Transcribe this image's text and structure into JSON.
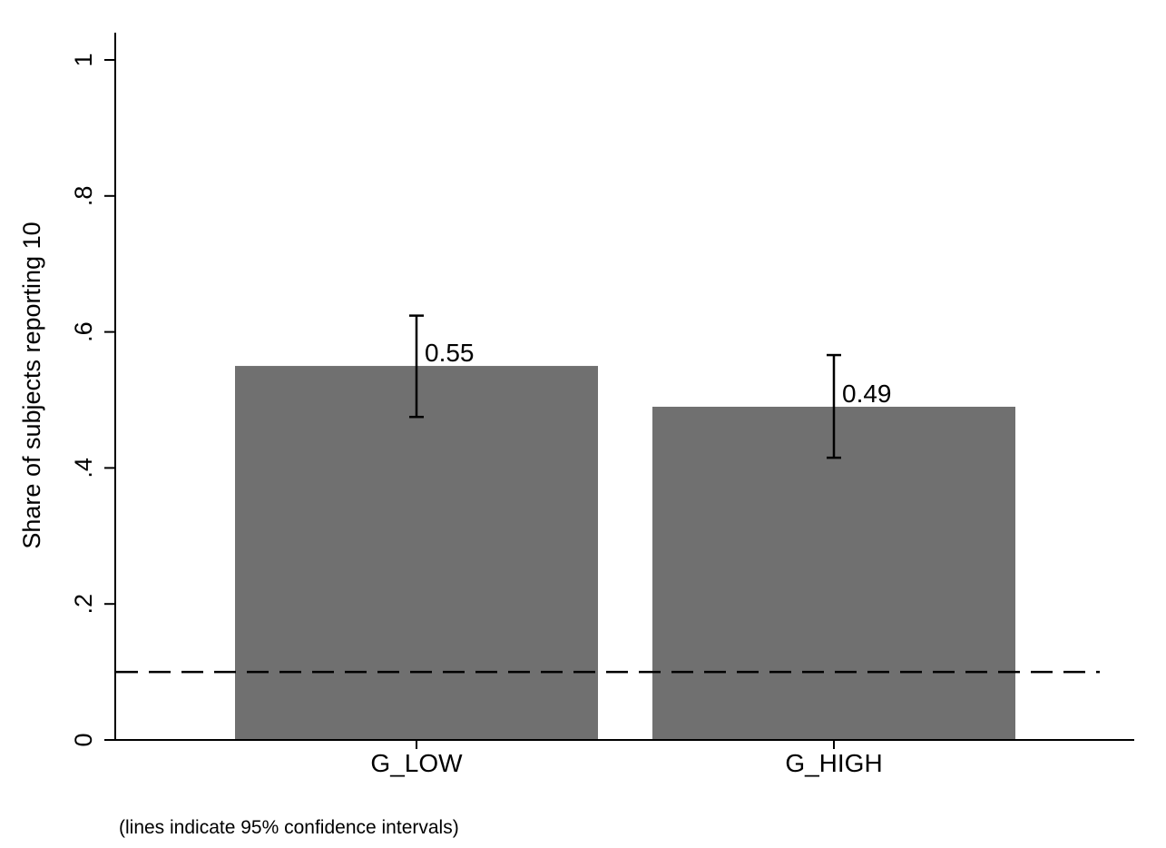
{
  "chart_data": {
    "type": "bar",
    "categories": [
      "G_LOW",
      "G_HIGH"
    ],
    "values": [
      0.55,
      0.49
    ],
    "value_labels": [
      "0.55",
      "0.49"
    ],
    "ci_lower": [
      0.475,
      0.415
    ],
    "ci_upper": [
      0.624,
      0.566
    ],
    "ylabel": "Share of subjects reporting 10",
    "ylim": [
      0,
      1
    ],
    "yticks": [
      0,
      0.2,
      0.4,
      0.6,
      0.8,
      1
    ],
    "ytick_labels": [
      "0",
      ".2",
      ".4",
      ".6",
      ".8",
      "1"
    ],
    "reference_line": 0.1,
    "note": "(lines indicate 95% confidence intervals)",
    "grid": false,
    "colors": {
      "bar": "#707070",
      "axis": "#000000",
      "error_bar": "#000000",
      "reference_line": "#000000"
    }
  }
}
